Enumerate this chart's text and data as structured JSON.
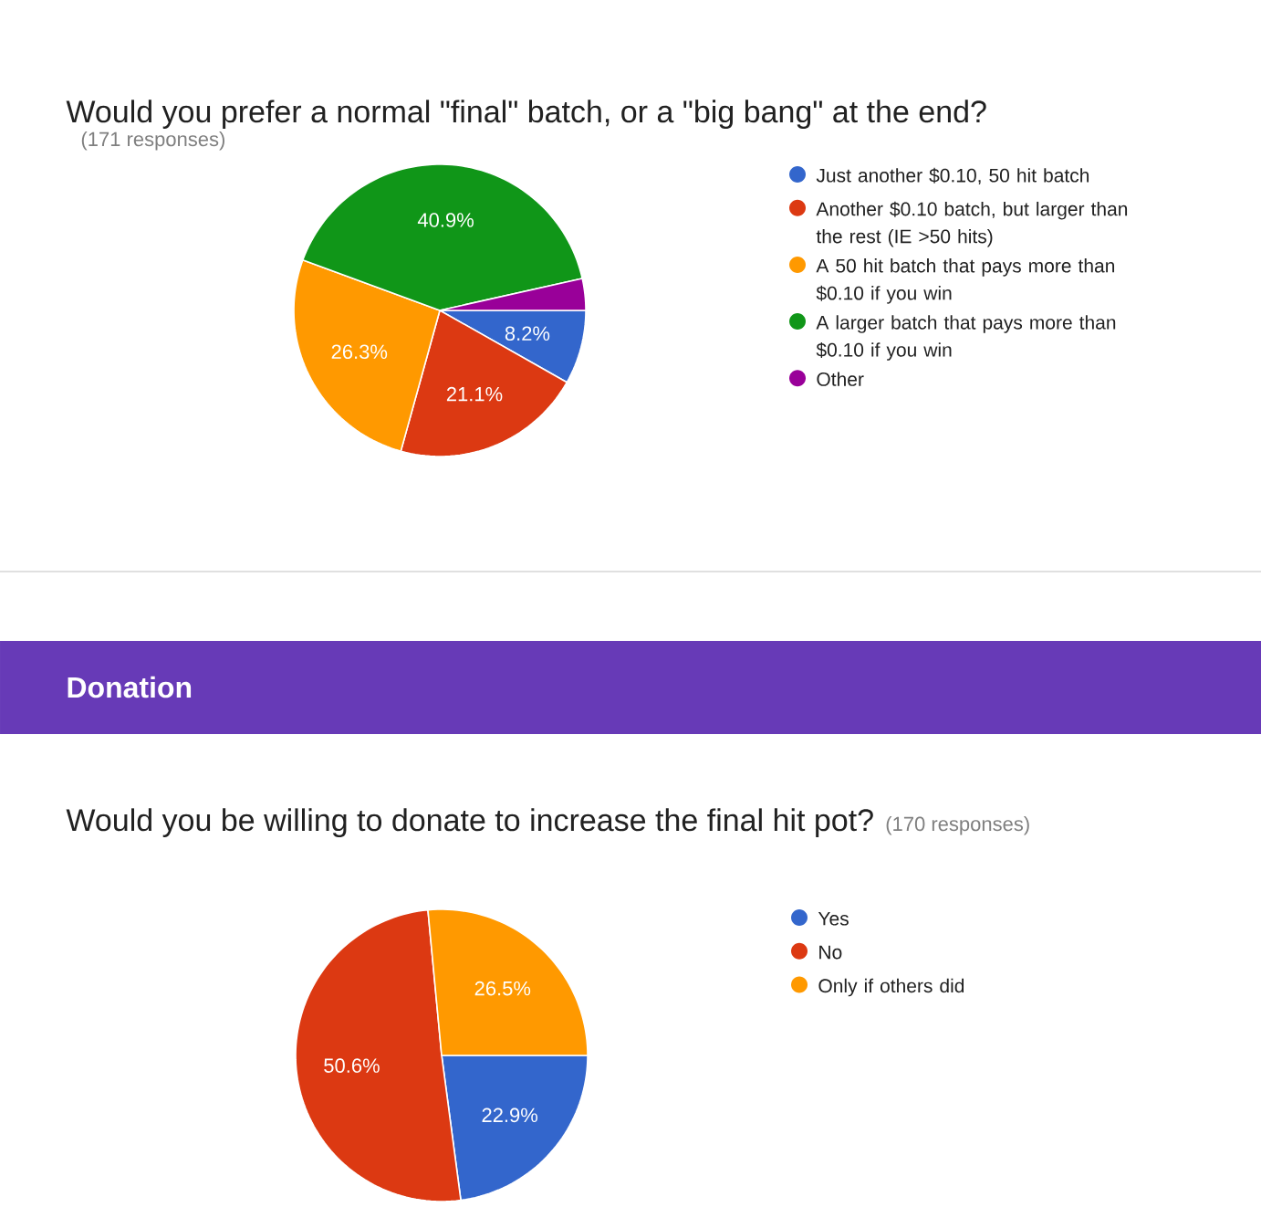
{
  "chart_data": [
    {
      "type": "pie",
      "title": "Would you prefer a normal \"final\" batch, or a \"big bang\" at the end?",
      "subtitle": "(171 responses)",
      "categories": [
        "Just another $0.10, 50 hit batch",
        "Another $0.10 batch, but larger than the rest (IE >50 hits)",
        "A 50 hit batch that pays more than $0.10 if you win",
        "A larger batch that pays more than $0.10 if you win",
        "Other"
      ],
      "values": [
        8.2,
        21.1,
        26.3,
        40.9,
        3.5
      ],
      "colors": [
        "#3366cc",
        "#dc3912",
        "#ff9900",
        "#109618",
        "#990099"
      ],
      "value_labels": [
        "8.2%",
        "21.1%",
        "26.3%",
        "40.9%",
        null
      ],
      "legend": "right"
    },
    {
      "type": "pie",
      "title": "Would you be willing to donate to increase the final hit pot?",
      "subtitle": "(170 responses)",
      "annotations": [
        "Donation"
      ],
      "categories": [
        "Yes",
        "No",
        "Only if others did"
      ],
      "values": [
        22.9,
        50.6,
        26.5
      ],
      "colors": [
        "#3366cc",
        "#dc3912",
        "#ff9900"
      ],
      "value_labels": [
        "22.9%",
        "50.6%",
        "26.5%"
      ],
      "legend": "right"
    }
  ]
}
